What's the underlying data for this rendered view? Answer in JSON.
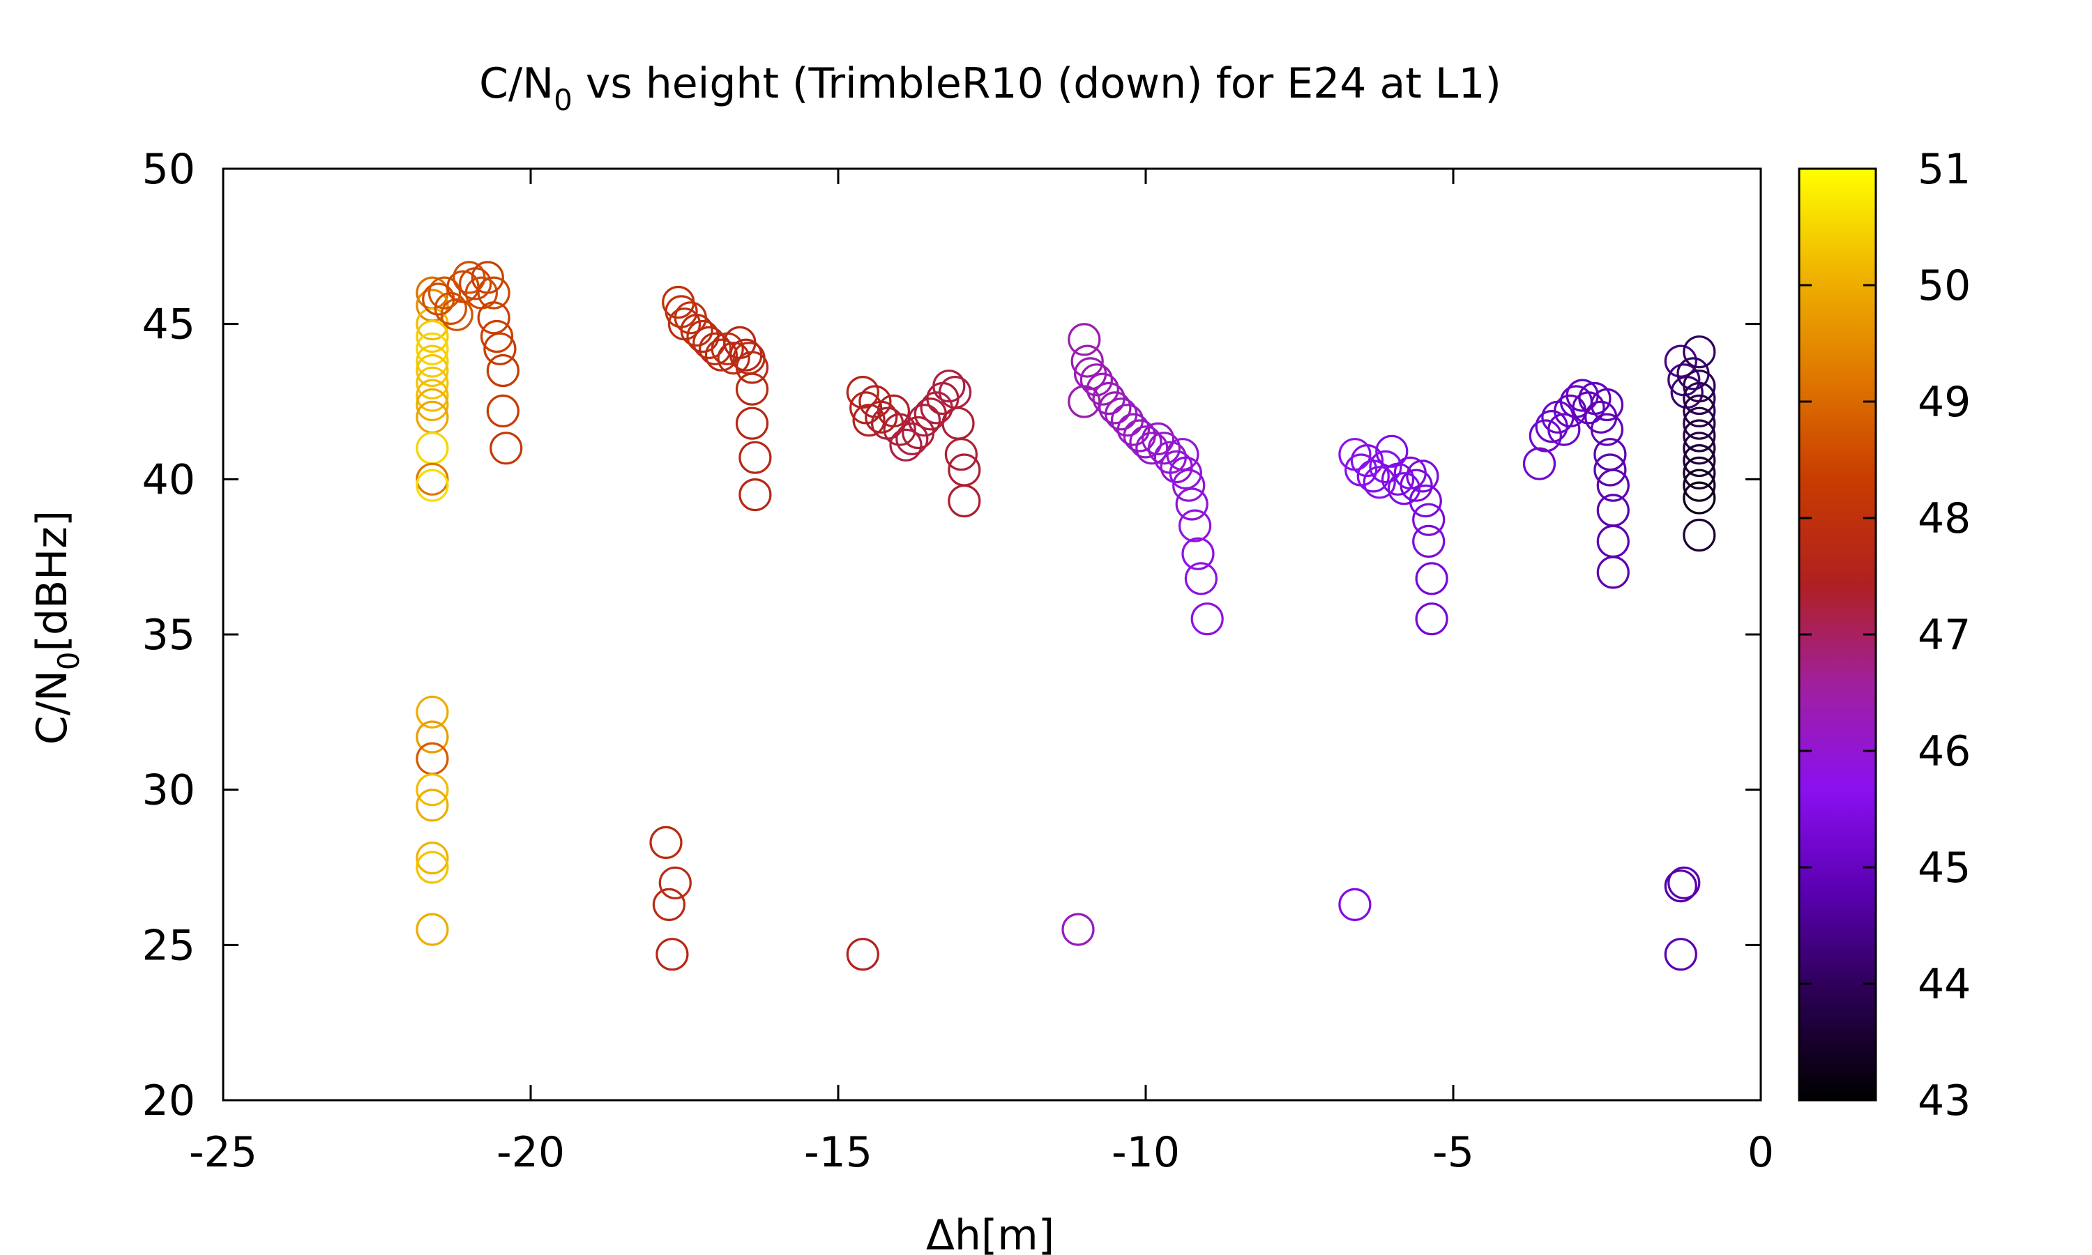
{
  "chart_data": {
    "type": "scatter",
    "title": {
      "prefix": "C/N",
      "subscript": "0",
      "suffix": " vs height (TrimbleR10 (down) for E24 at L1)"
    },
    "xlabel": "Δh[m]",
    "ylabel": {
      "prefix": "C/N",
      "subscript": "0",
      "suffix": "[dBHz]"
    },
    "xlim": [
      -25,
      0
    ],
    "ylim": [
      20,
      50
    ],
    "xticks": [
      -25,
      -20,
      -15,
      -10,
      -5,
      0
    ],
    "yticks": [
      20,
      25,
      30,
      35,
      40,
      45,
      50
    ],
    "colorbar": {
      "range": [
        43,
        51
      ],
      "ticks": [
        43,
        44,
        45,
        46,
        47,
        48,
        49,
        50,
        51
      ],
      "palette": [
        "#000000",
        "#2a0050",
        "#5a00b0",
        "#8a10f0",
        "#a020a0",
        "#b02020",
        "#c83c00",
        "#e07800",
        "#f0b400",
        "#ffff00"
      ]
    },
    "grid": false,
    "legend": "none",
    "marker": "open-circle",
    "points": [
      [
        -21.6,
        46.0,
        49.1
      ],
      [
        -21.6,
        45.6,
        49.5
      ],
      [
        -21.6,
        45.0,
        50.2
      ],
      [
        -21.6,
        44.6,
        50.4
      ],
      [
        -21.6,
        44.2,
        50.5
      ],
      [
        -21.6,
        43.8,
        50.4
      ],
      [
        -21.6,
        43.5,
        50.3
      ],
      [
        -21.6,
        43.1,
        50.3
      ],
      [
        -21.6,
        42.7,
        50.2
      ],
      [
        -21.6,
        42.4,
        50.0
      ],
      [
        -21.6,
        42.0,
        49.9
      ],
      [
        -21.6,
        41.0,
        50.5
      ],
      [
        -21.6,
        40.0,
        49.2
      ],
      [
        -21.6,
        39.8,
        50.6
      ],
      [
        -21.5,
        45.8,
        48.6
      ],
      [
        -21.4,
        46.0,
        48.7
      ],
      [
        -21.3,
        45.5,
        48.6
      ],
      [
        -21.2,
        45.3,
        48.7
      ],
      [
        -21.1,
        46.2,
        48.5
      ],
      [
        -21.0,
        46.5,
        48.6
      ],
      [
        -20.9,
        46.3,
        48.5
      ],
      [
        -20.8,
        46.0,
        48.6
      ],
      [
        -20.7,
        46.5,
        48.4
      ],
      [
        -20.6,
        46.0,
        48.5
      ],
      [
        -20.6,
        45.2,
        48.4
      ],
      [
        -20.55,
        44.6,
        48.4
      ],
      [
        -20.5,
        44.2,
        48.3
      ],
      [
        -20.45,
        43.5,
        48.3
      ],
      [
        -20.45,
        42.2,
        48.3
      ],
      [
        -20.4,
        41.0,
        48.2
      ],
      [
        -21.6,
        32.5,
        50.0
      ],
      [
        -21.6,
        31.7,
        49.8
      ],
      [
        -21.6,
        31.0,
        48.8
      ],
      [
        -21.6,
        30.0,
        50.2
      ],
      [
        -21.6,
        29.5,
        50.0
      ],
      [
        -21.6,
        27.8,
        50.1
      ],
      [
        -21.6,
        27.5,
        50.3
      ],
      [
        -21.6,
        25.5,
        50.0
      ],
      [
        -17.6,
        45.7,
        48.0
      ],
      [
        -17.55,
        45.4,
        48.0
      ],
      [
        -17.5,
        45.0,
        47.9
      ],
      [
        -17.4,
        45.2,
        48.0
      ],
      [
        -17.3,
        44.8,
        47.9
      ],
      [
        -17.2,
        44.6,
        47.9
      ],
      [
        -17.1,
        44.4,
        47.9
      ],
      [
        -17.0,
        44.2,
        47.8
      ],
      [
        -16.9,
        44.0,
        47.8
      ],
      [
        -16.8,
        44.2,
        47.9
      ],
      [
        -16.7,
        43.9,
        47.8
      ],
      [
        -16.6,
        44.4,
        47.7
      ],
      [
        -16.5,
        44.0,
        47.7
      ],
      [
        -16.45,
        43.9,
        47.8
      ],
      [
        -16.4,
        43.6,
        47.8
      ],
      [
        -16.4,
        42.9,
        47.8
      ],
      [
        -16.4,
        41.8,
        47.7
      ],
      [
        -16.35,
        40.7,
        47.7
      ],
      [
        -16.35,
        39.5,
        47.7
      ],
      [
        -17.8,
        28.3,
        47.8
      ],
      [
        -17.65,
        27.0,
        47.8
      ],
      [
        -17.75,
        26.3,
        47.8
      ],
      [
        -17.7,
        24.7,
        47.7
      ],
      [
        -14.6,
        42.8,
        47.6
      ],
      [
        -14.55,
        42.3,
        47.6
      ],
      [
        -14.5,
        41.9,
        47.5
      ],
      [
        -14.4,
        42.5,
        47.5
      ],
      [
        -14.3,
        42.0,
        47.4
      ],
      [
        -14.2,
        41.8,
        47.3
      ],
      [
        -14.1,
        42.2,
        47.4
      ],
      [
        -14.0,
        41.6,
        47.3
      ],
      [
        -13.9,
        41.1,
        47.2
      ],
      [
        -13.8,
        41.3,
        47.2
      ],
      [
        -13.7,
        41.5,
        47.3
      ],
      [
        -13.6,
        41.9,
        47.2
      ],
      [
        -13.5,
        42.1,
        47.3
      ],
      [
        -13.4,
        42.3,
        47.2
      ],
      [
        -13.3,
        42.6,
        47.3
      ],
      [
        -13.2,
        43.0,
        47.2
      ],
      [
        -13.1,
        42.8,
        47.2
      ],
      [
        -13.05,
        41.8,
        47.3
      ],
      [
        -13.0,
        40.8,
        47.3
      ],
      [
        -12.95,
        40.3,
        47.3
      ],
      [
        -12.95,
        39.3,
        47.3
      ],
      [
        -14.6,
        24.7,
        47.5
      ],
      [
        -11.0,
        44.5,
        46.4
      ],
      [
        -10.95,
        43.8,
        46.4
      ],
      [
        -10.9,
        43.4,
        46.3
      ],
      [
        -11.0,
        42.5,
        46.4
      ],
      [
        -10.8,
        43.2,
        46.3
      ],
      [
        -10.7,
        42.9,
        46.3
      ],
      [
        -10.6,
        42.6,
        46.3
      ],
      [
        -10.5,
        42.3,
        46.3
      ],
      [
        -10.4,
        42.1,
        46.2
      ],
      [
        -10.3,
        41.9,
        46.2
      ],
      [
        -10.2,
        41.6,
        46.2
      ],
      [
        -10.1,
        41.4,
        46.2
      ],
      [
        -10.0,
        41.2,
        46.1
      ],
      [
        -9.9,
        41.0,
        46.1
      ],
      [
        -9.8,
        41.3,
        46.1
      ],
      [
        -9.7,
        41.0,
        46.1
      ],
      [
        -9.6,
        40.7,
        46.0
      ],
      [
        -9.5,
        40.4,
        46.0
      ],
      [
        -9.4,
        40.8,
        46.0
      ],
      [
        -9.35,
        40.2,
        45.9
      ],
      [
        -9.3,
        39.8,
        45.9
      ],
      [
        -9.25,
        39.2,
        45.9
      ],
      [
        -9.2,
        38.5,
        45.9
      ],
      [
        -9.15,
        37.6,
        45.8
      ],
      [
        -9.1,
        36.8,
        45.8
      ],
      [
        -9.0,
        35.5,
        45.8
      ],
      [
        -11.1,
        25.5,
        46.2
      ],
      [
        -6.6,
        40.8,
        45.7
      ],
      [
        -6.5,
        40.3,
        45.7
      ],
      [
        -6.4,
        40.6,
        45.6
      ],
      [
        -6.3,
        40.1,
        45.6
      ],
      [
        -6.2,
        39.9,
        45.6
      ],
      [
        -6.1,
        40.4,
        45.6
      ],
      [
        -6.0,
        40.9,
        45.5
      ],
      [
        -5.9,
        40.0,
        45.5
      ],
      [
        -5.8,
        39.7,
        45.5
      ],
      [
        -5.7,
        40.2,
        45.5
      ],
      [
        -5.6,
        39.8,
        45.4
      ],
      [
        -5.5,
        40.1,
        45.4
      ],
      [
        -5.45,
        39.3,
        45.4
      ],
      [
        -5.4,
        38.7,
        45.4
      ],
      [
        -5.4,
        38.0,
        45.4
      ],
      [
        -5.35,
        36.8,
        45.3
      ],
      [
        -5.35,
        35.5,
        45.3
      ],
      [
        -6.6,
        26.3,
        45.5
      ],
      [
        -3.6,
        40.5,
        45.2
      ],
      [
        -3.5,
        41.4,
        45.2
      ],
      [
        -3.4,
        41.7,
        45.1
      ],
      [
        -3.3,
        42.0,
        45.1
      ],
      [
        -3.2,
        41.6,
        45.1
      ],
      [
        -3.1,
        42.2,
        45.0
      ],
      [
        -3.0,
        42.5,
        45.0
      ],
      [
        -2.9,
        42.7,
        45.0
      ],
      [
        -2.8,
        42.3,
        44.9
      ],
      [
        -2.7,
        42.6,
        44.9
      ],
      [
        -2.6,
        42.0,
        44.9
      ],
      [
        -2.5,
        42.4,
        44.9
      ],
      [
        -2.5,
        41.6,
        44.9
      ],
      [
        -2.45,
        40.8,
        44.8
      ],
      [
        -2.45,
        40.3,
        44.8
      ],
      [
        -2.4,
        39.8,
        44.8
      ],
      [
        -2.4,
        39.0,
        44.8
      ],
      [
        -2.4,
        38.0,
        44.8
      ],
      [
        -2.4,
        37.0,
        44.8
      ],
      [
        -1.3,
        43.8,
        44.4
      ],
      [
        -1.25,
        43.2,
        44.3
      ],
      [
        -1.2,
        42.8,
        44.2
      ],
      [
        -1.1,
        43.4,
        44.1
      ],
      [
        -1.0,
        44.1,
        44.0
      ],
      [
        -1.0,
        43.0,
        43.9
      ],
      [
        -1.0,
        42.6,
        43.9
      ],
      [
        -1.0,
        42.2,
        43.8
      ],
      [
        -1.0,
        41.8,
        43.8
      ],
      [
        -1.0,
        41.4,
        43.7
      ],
      [
        -1.0,
        41.0,
        43.7
      ],
      [
        -1.0,
        40.6,
        43.6
      ],
      [
        -1.0,
        40.2,
        43.5
      ],
      [
        -1.0,
        39.8,
        43.4
      ],
      [
        -1.0,
        39.4,
        43.3
      ],
      [
        -1.0,
        38.2,
        43.6
      ],
      [
        -1.25,
        27.0,
        44.8
      ],
      [
        -1.3,
        26.9,
        44.7
      ],
      [
        -1.3,
        24.7,
        44.8
      ]
    ]
  }
}
